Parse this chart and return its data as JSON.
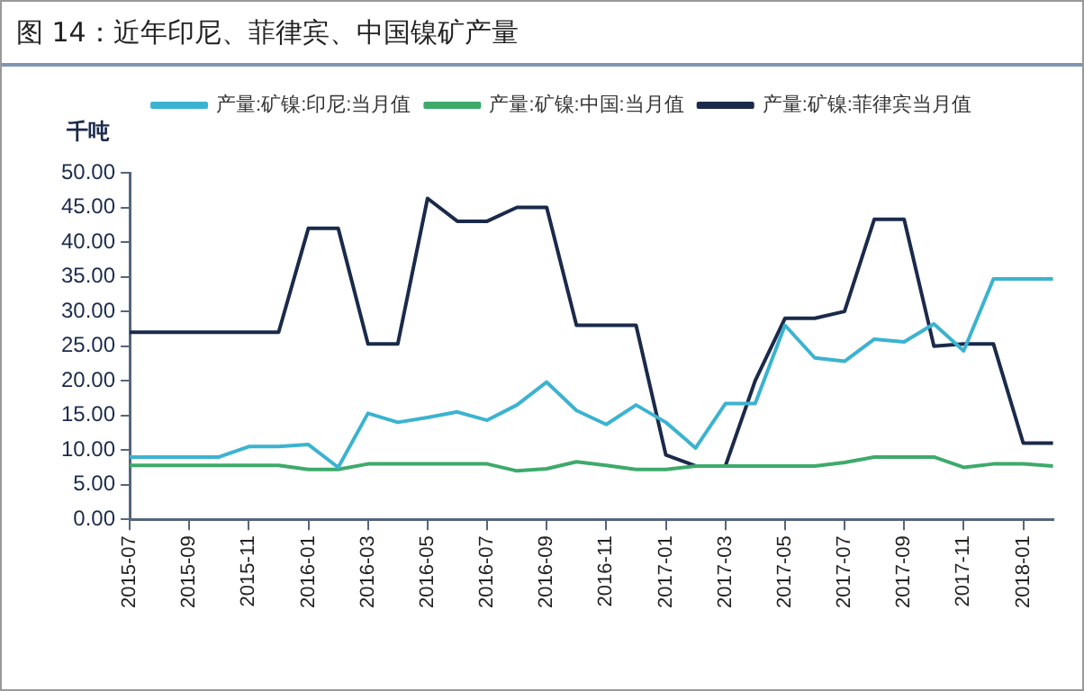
{
  "chart_data": {
    "type": "line",
    "title": "图 14：近年印尼、菲律宾、中国镍矿产量",
    "ylabel": "千吨",
    "categories": [
      "2015-07",
      null,
      "2015-09",
      null,
      "2015-11",
      null,
      "2016-01",
      null,
      "2016-03",
      null,
      "2016-05",
      null,
      "2016-07",
      null,
      "2016-09",
      null,
      "2016-11",
      null,
      "2017-01",
      null,
      "2017-03",
      null,
      "2017-05",
      null,
      "2017-07",
      null,
      "2017-09",
      null,
      "2017-11",
      null,
      "2018-01",
      null
    ],
    "series": [
      {
        "name": "产量:矿镍:印尼:当月值",
        "color": "#3bb3d0",
        "values": [
          9,
          9,
          9,
          9,
          10.5,
          10.5,
          10.8,
          7.5,
          15.3,
          14,
          14.7,
          15.5,
          14.3,
          16.5,
          19.8,
          15.7,
          13.7,
          16.5,
          14,
          10.3,
          16.7,
          16.7,
          28,
          23.3,
          22.8,
          26,
          25.6,
          28.2,
          24.3,
          34.7,
          34.7,
          34.7
        ]
      },
      {
        "name": "产量:矿镍:中国:当月值",
        "color": "#3daa6a",
        "values": [
          7.8,
          7.8,
          7.8,
          7.8,
          7.8,
          7.8,
          7.2,
          7.2,
          8,
          8,
          8,
          8,
          8,
          7,
          7.3,
          8.3,
          7.8,
          7.2,
          7.2,
          7.7,
          7.7,
          7.7,
          7.7,
          7.7,
          8.2,
          9,
          9,
          9,
          7.5,
          8,
          8,
          7.7
        ]
      },
      {
        "name": "产量:矿镍:菲律宾当月值",
        "color": "#1b2a4a",
        "values": [
          27,
          27,
          27,
          27,
          27,
          27,
          42,
          42,
          25.3,
          25.3,
          46.3,
          43,
          43,
          45,
          45,
          28,
          28,
          28,
          9.3,
          7.7,
          7.7,
          20,
          29,
          29,
          30,
          43.3,
          43.3,
          25,
          25.3,
          25.3,
          11,
          11
        ]
      }
    ],
    "ylim": [
      0,
      50
    ],
    "yticks": [
      {
        "value": 0,
        "label": "0.00"
      },
      {
        "value": 5,
        "label": "5.00"
      },
      {
        "value": 10,
        "label": "10.00"
      },
      {
        "value": 15,
        "label": "15.00"
      },
      {
        "value": 20,
        "label": "20.00"
      },
      {
        "value": 25,
        "label": "25.00"
      },
      {
        "value": 30,
        "label": "30.00"
      },
      {
        "value": 35,
        "label": "35.00"
      },
      {
        "value": 40,
        "label": "40.00"
      },
      {
        "value": 45,
        "label": "45.00"
      },
      {
        "value": 50,
        "label": "50.00"
      }
    ],
    "grid": false,
    "legend": "top",
    "marker": "none",
    "line_style": "solid"
  }
}
